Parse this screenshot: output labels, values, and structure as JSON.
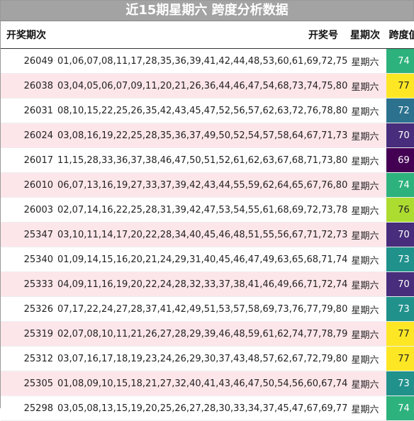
{
  "title": "近15期星期六 跨度分析数据",
  "headers": {
    "issue": "开奖期次",
    "numbers": "开奖号",
    "weekday": "星期次",
    "span": "跨度值"
  },
  "rows": [
    {
      "issue": "26049",
      "numbers": "01,06,07,08,11,17,28,35,36,39,41,42,44,48,53,60,61,69,72,75",
      "weekday": "星期六",
      "span": "74",
      "color": "#2db27d"
    },
    {
      "issue": "26038",
      "numbers": "03,04,05,06,07,09,11,20,21,26,36,44,46,47,54,68,73,74,75,80",
      "weekday": "星期六",
      "span": "77",
      "color": "#fde725"
    },
    {
      "issue": "26031",
      "numbers": "08,10,15,22,25,26,35,42,43,45,47,52,56,57,62,63,72,76,78,80",
      "weekday": "星期六",
      "span": "72",
      "color": "#2c728e"
    },
    {
      "issue": "26024",
      "numbers": "03,08,16,19,22,25,28,35,36,37,49,50,52,54,57,58,64,67,71,73",
      "weekday": "星期六",
      "span": "70",
      "color": "#472d7b"
    },
    {
      "issue": "26017",
      "numbers": "11,15,28,33,36,37,38,46,47,50,51,52,61,62,63,67,68,71,73,80",
      "weekday": "星期六",
      "span": "69",
      "color": "#440154"
    },
    {
      "issue": "26010",
      "numbers": "06,07,13,16,19,27,33,37,39,42,43,44,55,59,62,64,65,67,76,80",
      "weekday": "星期六",
      "span": "74",
      "color": "#2db27d"
    },
    {
      "issue": "26003",
      "numbers": "02,07,14,16,22,25,28,31,39,42,47,53,54,55,61,68,69,72,73,78",
      "weekday": "星期六",
      "span": "76",
      "color": "#addc30"
    },
    {
      "issue": "25347",
      "numbers": "03,10,11,14,17,20,22,28,34,40,45,46,48,51,55,56,67,71,72,73",
      "weekday": "星期六",
      "span": "70",
      "color": "#472d7b"
    },
    {
      "issue": "25340",
      "numbers": "01,09,14,15,16,20,21,24,29,31,40,45,46,47,49,63,65,68,71,74",
      "weekday": "星期六",
      "span": "73",
      "color": "#21918c"
    },
    {
      "issue": "25333",
      "numbers": "04,09,11,16,19,20,22,24,28,32,33,37,38,41,46,49,66,71,72,74",
      "weekday": "星期六",
      "span": "70",
      "color": "#472d7b"
    },
    {
      "issue": "25326",
      "numbers": "07,17,22,24,27,28,37,41,42,49,51,53,57,58,69,73,76,77,79,80",
      "weekday": "星期六",
      "span": "73",
      "color": "#21918c"
    },
    {
      "issue": "25319",
      "numbers": "02,07,08,10,11,21,26,27,28,29,39,46,48,59,61,62,74,77,78,79",
      "weekday": "星期六",
      "span": "77",
      "color": "#fde725"
    },
    {
      "issue": "25312",
      "numbers": "03,07,16,17,18,19,23,24,26,29,30,37,43,48,57,62,67,72,79,80",
      "weekday": "星期六",
      "span": "77",
      "color": "#fde725"
    },
    {
      "issue": "25305",
      "numbers": "01,08,09,10,15,18,21,27,32,40,41,43,46,47,50,54,56,60,67,74",
      "weekday": "星期六",
      "span": "73",
      "color": "#21918c"
    },
    {
      "issue": "25298",
      "numbers": "03,05,08,13,15,19,20,25,26,27,28,30,33,34,37,45,47,67,69,77",
      "weekday": "星期六",
      "span": "74",
      "color": "#2db27d"
    }
  ]
}
